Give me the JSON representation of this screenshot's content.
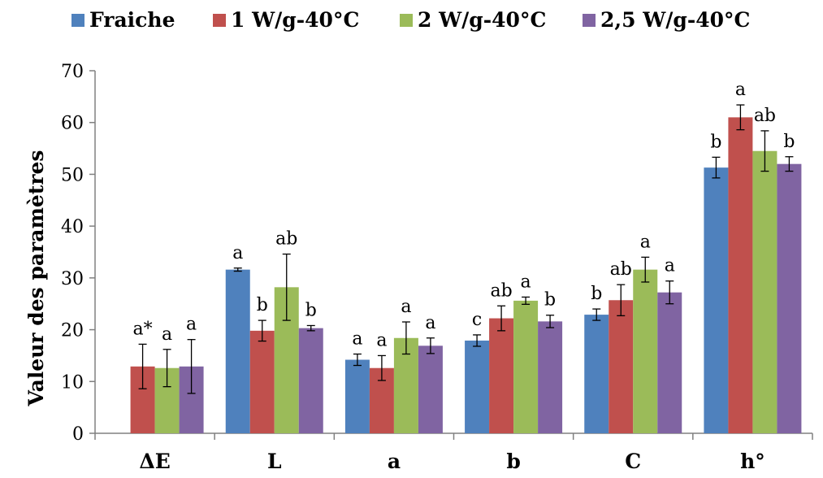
{
  "chart_data": {
    "type": "bar",
    "categories": [
      "ΔE",
      "L",
      "a",
      "b",
      "C",
      "h°"
    ],
    "ylabel": "Valeur des paramètres",
    "xlabel": "",
    "ylim": [
      0,
      70
    ],
    "yticks": [
      0,
      10,
      20,
      30,
      40,
      50,
      60,
      70
    ],
    "grid": false,
    "legend_position": "top",
    "error_bars": true,
    "series": [
      {
        "name": "Fraiche",
        "color": "#4F81BD",
        "values": [
          null,
          31.6,
          14.2,
          17.9,
          22.9,
          51.3
        ],
        "errors": [
          null,
          0.3,
          1.1,
          1.1,
          1.1,
          2.0
        ],
        "labels": [
          "",
          "a",
          "a",
          "c",
          "b",
          "b"
        ]
      },
      {
        "name": "1 W/g-40°C",
        "color": "#C0504D",
        "values": [
          12.9,
          19.8,
          12.6,
          22.2,
          25.7,
          61.0
        ],
        "errors": [
          4.3,
          2.0,
          2.4,
          2.4,
          3.0,
          2.4
        ],
        "labels": [
          "a*",
          "b",
          "a",
          "ab",
          "ab",
          "a"
        ]
      },
      {
        "name": "2 W/g-40°C",
        "color": "#9BBB59",
        "values": [
          12.6,
          28.2,
          18.4,
          25.6,
          31.6,
          54.5
        ],
        "errors": [
          3.6,
          6.4,
          3.1,
          0.7,
          2.4,
          3.9
        ],
        "labels": [
          "a",
          "ab",
          "a",
          "a",
          "a",
          "ab"
        ]
      },
      {
        "name": "2,5 W/g-40°C",
        "color": "#8064A2",
        "values": [
          12.9,
          20.3,
          16.9,
          21.6,
          27.2,
          52.0
        ],
        "errors": [
          5.2,
          0.5,
          1.5,
          1.2,
          2.2,
          1.4
        ],
        "labels": [
          "a",
          "b",
          "a",
          "b",
          "a",
          "b"
        ]
      }
    ]
  }
}
